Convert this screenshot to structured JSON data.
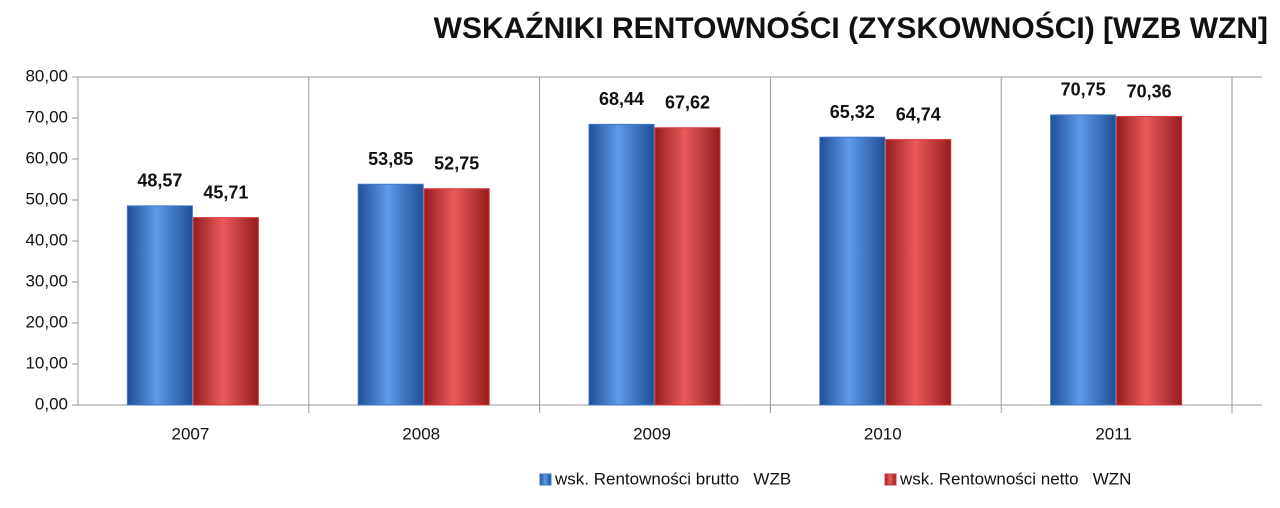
{
  "chart_data": {
    "type": "bar",
    "title": "WSKAŹNIKI RENTOWNOŚCI (ZYSKOWNOŚCI) [WZB WZN]",
    "categories": [
      "2007",
      "2008",
      "2009",
      "2010",
      "2011"
    ],
    "series": [
      {
        "name": "wsk. Rentowności brutto   WZB",
        "color": "#3a78c9",
        "values": [
          48.57,
          53.85,
          68.44,
          65.32,
          70.75
        ],
        "value_labels": [
          "48,57",
          "53,85",
          "68,44",
          "65,32",
          "70,75"
        ]
      },
      {
        "name": "wsk. Rentowności netto   WZN",
        "color": "#d63a3a",
        "values": [
          45.71,
          52.75,
          67.62,
          64.74,
          70.36
        ],
        "value_labels": [
          "45,71",
          "52,75",
          "67,62",
          "64,74",
          "70,36"
        ]
      }
    ],
    "ylim": [
      0,
      80
    ],
    "yticks": [
      {
        "value": 0,
        "label": "0,00"
      },
      {
        "value": 10,
        "label": "10,00"
      },
      {
        "value": 20,
        "label": "20,00"
      },
      {
        "value": 30,
        "label": "30,00"
      },
      {
        "value": 40,
        "label": "40,00"
      },
      {
        "value": 50,
        "label": "50,00"
      },
      {
        "value": 60,
        "label": "60,00"
      },
      {
        "value": 70,
        "label": "70,00"
      },
      {
        "value": 80,
        "label": "80,00"
      }
    ],
    "legend": "bottom"
  }
}
